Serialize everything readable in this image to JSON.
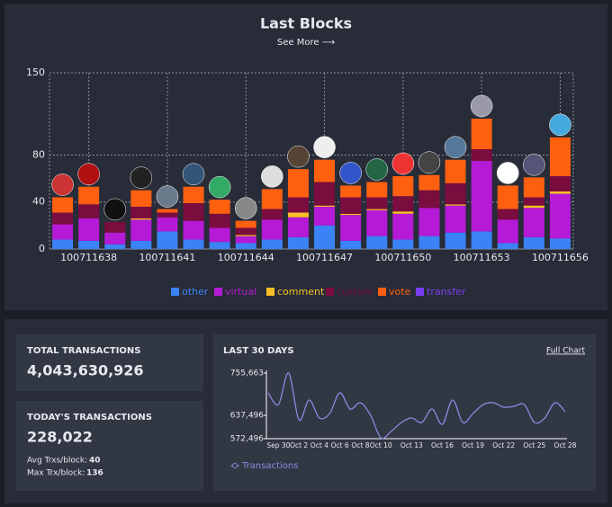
{
  "chart_data": [
    {
      "type": "stacked-bar",
      "title": "Last Blocks",
      "link": "See More ⟶",
      "categories": [
        null,
        "100711638",
        null,
        null,
        "100711641",
        null,
        null,
        "100711644",
        null,
        null,
        "100711647",
        null,
        null,
        "100711650",
        null,
        null,
        "100711653",
        null,
        null,
        "100711656"
      ],
      "series": [
        {
          "name": "other",
          "color": "#3b82f6",
          "values": [
            8,
            7,
            4,
            7,
            15,
            8,
            6,
            5,
            8,
            10,
            20,
            7,
            11,
            8,
            11,
            14,
            15,
            5,
            10,
            9
          ]
        },
        {
          "name": "virtual",
          "color": "#b51ad6",
          "values": [
            13,
            19,
            10,
            18,
            12,
            16,
            12,
            6,
            17,
            17,
            16,
            22,
            22,
            22,
            24,
            23,
            60,
            20,
            25,
            38
          ]
        },
        {
          "name": "comment",
          "color": "#f6c026",
          "values": [
            0,
            0,
            0,
            1,
            0,
            0,
            0,
            1,
            0,
            4,
            1,
            1,
            1,
            2,
            0,
            1,
            0,
            0,
            2,
            2
          ]
        },
        {
          "name": "custom",
          "color": "#7a0c3e",
          "values": [
            10,
            12,
            9,
            10,
            4,
            15,
            12,
            6,
            9,
            13,
            20,
            14,
            10,
            13,
            15,
            18,
            10,
            9,
            7,
            13
          ]
        },
        {
          "name": "vote",
          "color": "#ff6010",
          "values": [
            13,
            15,
            0,
            14,
            3,
            14,
            12,
            6,
            17,
            24,
            19,
            10,
            13,
            17,
            13,
            20,
            26,
            20,
            17,
            33
          ]
        },
        {
          "name": "transfer",
          "color": "#7b3ff2",
          "values": [
            0,
            0,
            0,
            0,
            0,
            0,
            0,
            0,
            0,
            0,
            0,
            0,
            0,
            0,
            0,
            0,
            0,
            0,
            0,
            0
          ]
        }
      ],
      "ylim": [
        0,
        150
      ],
      "yticks": [
        0,
        40,
        80,
        150
      ],
      "grid": true,
      "legend": "bottom"
    },
    {
      "type": "line",
      "title": "LAST 30 DAYS",
      "link": "Full Chart",
      "categories": [
        null,
        "Sep 30",
        null,
        "Oct 2",
        null,
        "Oct 4",
        null,
        "Oct 6",
        null,
        "Oct 8",
        null,
        "Oct 10",
        null,
        null,
        "Oct 13",
        null,
        null,
        "Oct 16",
        null,
        null,
        "Oct 19",
        null,
        null,
        "Oct 22",
        null,
        null,
        "Oct 25",
        null,
        null,
        "Oct 28"
      ],
      "series": [
        {
          "name": "Transactions",
          "color": "#8c88e0",
          "values": [
            700500,
            667800,
            755663,
            625200,
            680400,
            630200,
            642700,
            700500,
            655300,
            672900,
            637700,
            575000,
            592600,
            617700,
            630200,
            617700,
            655300,
            612600,
            680400,
            617700,
            642700,
            667800,
            672900,
            660300,
            662800,
            667800,
            617700,
            630200,
            672900,
            647800
          ]
        }
      ],
      "ylim": [
        572496,
        755663
      ],
      "yticks": [
        {
          "value": 572496,
          "label": "572,496"
        },
        {
          "value": 637496,
          "label": "637,496"
        },
        {
          "value": 755663,
          "label": "755,663"
        }
      ],
      "legend": "bottom-left"
    }
  ],
  "stats": {
    "total": {
      "label": "TOTAL TRANSACTIONS",
      "value": "4,043,630,926"
    },
    "today": {
      "label": "TODAY'S TRANSACTIONS",
      "value": "228,022",
      "details": [
        {
          "label": "Avg Trxs/block:",
          "value": "40"
        },
        {
          "label": "Max Trx/block:",
          "value": "136"
        }
      ]
    }
  }
}
